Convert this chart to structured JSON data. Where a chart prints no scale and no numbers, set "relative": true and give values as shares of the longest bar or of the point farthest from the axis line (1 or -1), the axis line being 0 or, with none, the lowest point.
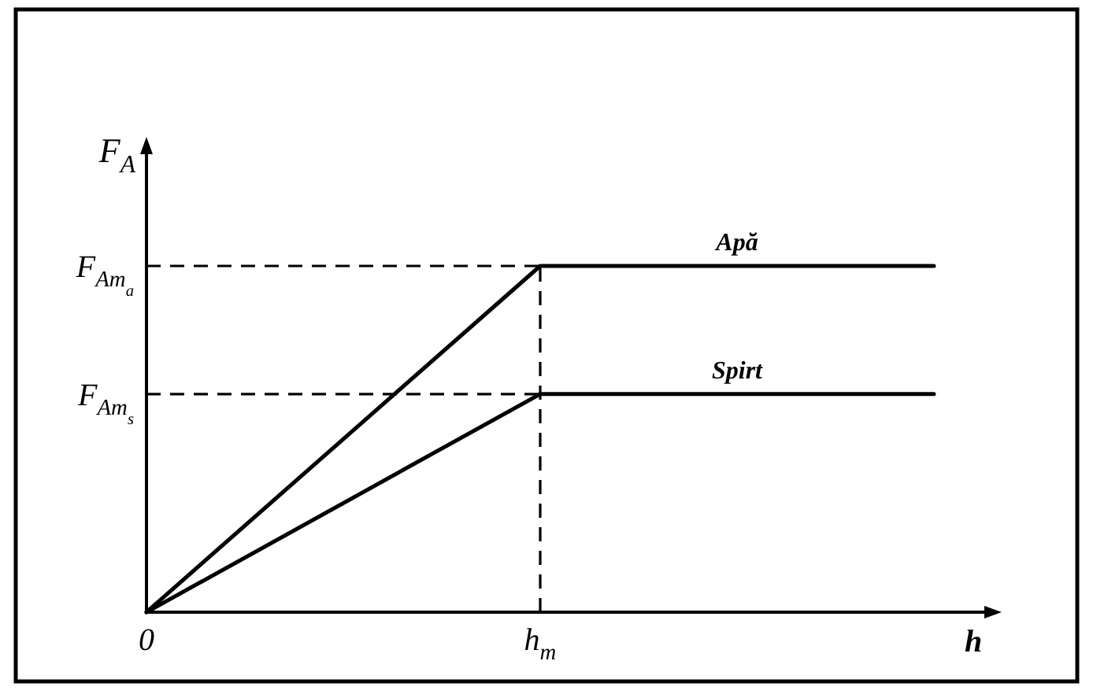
{
  "chart_data": {
    "type": "line",
    "xlabel": "h",
    "ylabel": "F$_{A}$",
    "categories": [
      "0",
      "h$_{m}$",
      null
    ],
    "relative": true,
    "series": [
      {
        "name": "Apă",
        "color": "#000000",
        "values": [
          0,
          1,
          1
        ]
      },
      {
        "name": "Spirt",
        "color": "#000000",
        "values": [
          0,
          0.63,
          0.63
        ]
      }
    ],
    "ref_lines": [
      {
        "axis": "y",
        "value": 1,
        "label": "F$_{Am}$$_{a}$",
        "line_style": "dashed",
        "color": "#000000"
      },
      {
        "axis": "y",
        "value": 0.63,
        "label": "F$_{Am}$$_{s}$",
        "line_style": "dashed",
        "color": "#000000"
      },
      {
        "axis": "x",
        "value": "h$_{m}$",
        "line_style": "dashed",
        "color": "#000000"
      }
    ]
  }
}
